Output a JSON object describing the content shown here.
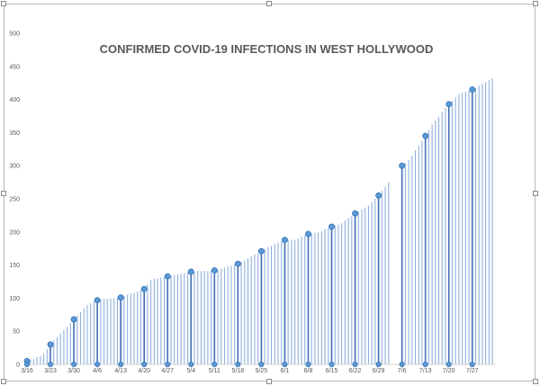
{
  "chart_data": {
    "type": "bar",
    "title": "CONFIRMED COVID-19 INFECTIONS IN WEST HOLLYWOOD",
    "xlabel": "",
    "ylabel": "",
    "ylim": [
      0,
      500
    ],
    "ytick_labels": [
      "0",
      "50",
      "100",
      "150",
      "200",
      "250",
      "300",
      "350",
      "400",
      "450",
      "500"
    ],
    "xtick_labels": [
      "3/16",
      "3/23",
      "3/30",
      "4/6",
      "4/13",
      "4/20",
      "4/27",
      "5/4",
      "5/11",
      "5/18",
      "5/25",
      "6/1",
      "6/8",
      "6/15",
      "6/22",
      "6/29",
      "7/6",
      "7/13",
      "7/20",
      "7/27"
    ],
    "grid": false,
    "legend": "none",
    "bar_color": "#8fb0de",
    "highlight_color": "#3f6fb6",
    "marker_color": "#5b9bd5",
    "gap_start": "7/3",
    "gap_end": "7/5",
    "knots": [
      [
        "3/16",
        5
      ],
      [
        "3/18",
        8
      ],
      [
        "3/21",
        16
      ],
      [
        "3/23",
        30
      ],
      [
        "3/27",
        52
      ],
      [
        "3/30",
        68
      ],
      [
        "4/3",
        90
      ],
      [
        "4/6",
        97
      ],
      [
        "4/10",
        100
      ],
      [
        "4/13",
        101
      ],
      [
        "4/20",
        114
      ],
      [
        "4/22",
        128
      ],
      [
        "4/27",
        133
      ],
      [
        "5/4",
        140
      ],
      [
        "5/11",
        142
      ],
      [
        "5/18",
        152
      ],
      [
        "5/25",
        171
      ],
      [
        "5/29",
        182
      ],
      [
        "6/1",
        188
      ],
      [
        "6/4",
        188
      ],
      [
        "6/8",
        197
      ],
      [
        "6/11",
        199
      ],
      [
        "6/15",
        208
      ],
      [
        "6/18",
        213
      ],
      [
        "6/22",
        228
      ],
      [
        "6/26",
        240
      ],
      [
        "6/29",
        255
      ],
      [
        "7/2",
        275
      ],
      [
        "7/6",
        300
      ],
      [
        "7/8",
        308
      ],
      [
        "7/13",
        345
      ],
      [
        "7/15",
        362
      ],
      [
        "7/20",
        393
      ],
      [
        "7/23",
        408
      ],
      [
        "7/27",
        415
      ],
      [
        "8/2",
        432
      ]
    ]
  }
}
